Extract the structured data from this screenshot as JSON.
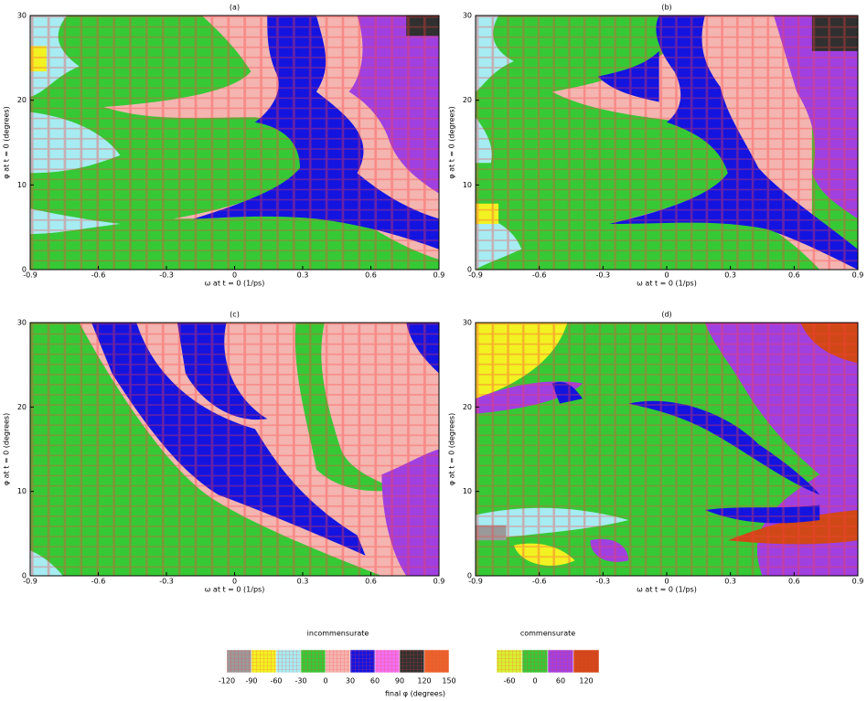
{
  "chart_data": [
    {
      "type": "map",
      "title": "(a)",
      "xlabel": "ω at t = 0 (1/ps)",
      "ylabel": "φ at t = 0 (degrees)",
      "xlim": [
        -0.9,
        0.9
      ],
      "ylim": [
        0,
        30
      ],
      "xticks": [
        -0.9,
        -0.6,
        -0.3,
        0,
        0.3,
        0.6,
        0.9
      ],
      "yticks": [
        0,
        10,
        20,
        30
      ]
    },
    {
      "type": "map",
      "title": "(b)",
      "xlabel": "ω at t = 0 (1/ps)",
      "ylabel": "φ at t = 0 (degrees)",
      "xlim": [
        -0.9,
        0.9
      ],
      "ylim": [
        0,
        30
      ],
      "xticks": [
        -0.9,
        -0.6,
        -0.3,
        0,
        0.3,
        0.6,
        0.9
      ],
      "yticks": [
        0,
        10,
        20,
        30
      ]
    },
    {
      "type": "map",
      "title": "(c)",
      "xlabel": "ω at t = 0 (1/ps)",
      "ylabel": "φ at t = 0 (degrees)",
      "xlim": [
        -0.9,
        0.9
      ],
      "ylim": [
        0,
        30
      ],
      "xticks": [
        -0.9,
        -0.6,
        -0.3,
        0,
        0.3,
        0.6,
        0.9
      ],
      "yticks": [
        0,
        10,
        20,
        30
      ]
    },
    {
      "type": "map",
      "title": "(d)",
      "xlabel": "ω at t = 0 (1/ps)",
      "ylabel": "φ at t = 0 (degrees)",
      "xlim": [
        -0.9,
        0.9
      ],
      "ylim": [
        0,
        30
      ],
      "xticks": [
        -0.9,
        -0.6,
        -0.3,
        0,
        0.3,
        0.6,
        0.9
      ],
      "yticks": [
        0,
        10,
        20,
        30
      ]
    }
  ],
  "legend": {
    "incommensurate": {
      "title": "incommensurate",
      "colors": [
        "#9a9a9a",
        "#f2f222",
        "#a6ecf2",
        "#36c936",
        "#f4b4b0",
        "#1414e0",
        "#f070f0",
        "#303030",
        "#e8642a"
      ],
      "ticks": [
        -120,
        -90,
        -60,
        -30,
        0,
        30,
        60,
        90,
        120,
        150
      ]
    },
    "commensurate": {
      "title": "commensurate",
      "colors": [
        "#d8f030",
        "#36c936",
        "#a040e0",
        "#d04818"
      ],
      "ticks": [
        -60,
        0,
        60,
        120
      ]
    },
    "xlabel": "final φ (degrees)"
  }
}
